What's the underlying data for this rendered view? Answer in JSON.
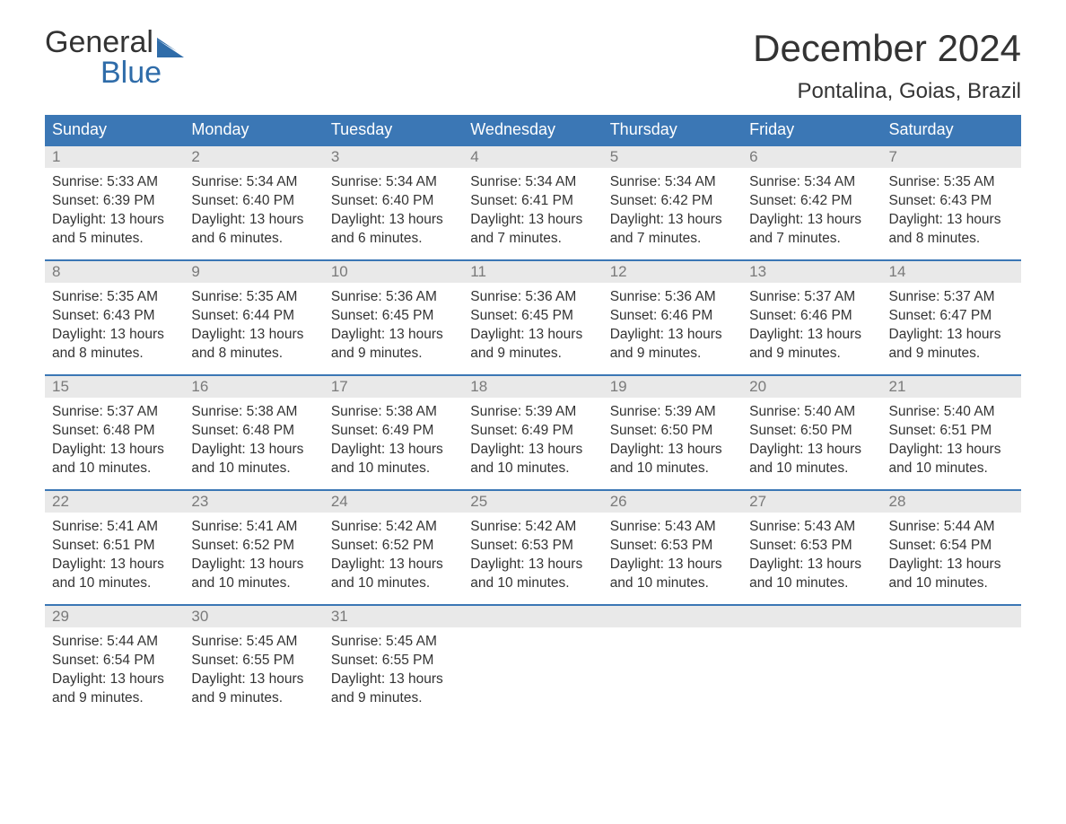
{
  "logo": {
    "word1": "General",
    "word2": "Blue",
    "accent_color": "#2f6ca9"
  },
  "title": "December 2024",
  "location": "Pontalina, Goias, Brazil",
  "colors": {
    "header_bg": "#3b77b5",
    "header_text": "#ffffff",
    "daynum_bg": "#e9e9e9",
    "daynum_text": "#7a7a7a",
    "border": "#3b77b5",
    "body_text": "#333333",
    "background": "#ffffff"
  },
  "typography": {
    "title_fontsize": 42,
    "location_fontsize": 24,
    "header_fontsize": 18,
    "daynum_fontsize": 17,
    "body_fontsize": 15.5
  },
  "weekdays": [
    "Sunday",
    "Monday",
    "Tuesday",
    "Wednesday",
    "Thursday",
    "Friday",
    "Saturday"
  ],
  "weeks": [
    [
      {
        "day": "1",
        "sunrise": "Sunrise: 5:33 AM",
        "sunset": "Sunset: 6:39 PM",
        "daylight1": "Daylight: 13 hours",
        "daylight2": "and 5 minutes."
      },
      {
        "day": "2",
        "sunrise": "Sunrise: 5:34 AM",
        "sunset": "Sunset: 6:40 PM",
        "daylight1": "Daylight: 13 hours",
        "daylight2": "and 6 minutes."
      },
      {
        "day": "3",
        "sunrise": "Sunrise: 5:34 AM",
        "sunset": "Sunset: 6:40 PM",
        "daylight1": "Daylight: 13 hours",
        "daylight2": "and 6 minutes."
      },
      {
        "day": "4",
        "sunrise": "Sunrise: 5:34 AM",
        "sunset": "Sunset: 6:41 PM",
        "daylight1": "Daylight: 13 hours",
        "daylight2": "and 7 minutes."
      },
      {
        "day": "5",
        "sunrise": "Sunrise: 5:34 AM",
        "sunset": "Sunset: 6:42 PM",
        "daylight1": "Daylight: 13 hours",
        "daylight2": "and 7 minutes."
      },
      {
        "day": "6",
        "sunrise": "Sunrise: 5:34 AM",
        "sunset": "Sunset: 6:42 PM",
        "daylight1": "Daylight: 13 hours",
        "daylight2": "and 7 minutes."
      },
      {
        "day": "7",
        "sunrise": "Sunrise: 5:35 AM",
        "sunset": "Sunset: 6:43 PM",
        "daylight1": "Daylight: 13 hours",
        "daylight2": "and 8 minutes."
      }
    ],
    [
      {
        "day": "8",
        "sunrise": "Sunrise: 5:35 AM",
        "sunset": "Sunset: 6:43 PM",
        "daylight1": "Daylight: 13 hours",
        "daylight2": "and 8 minutes."
      },
      {
        "day": "9",
        "sunrise": "Sunrise: 5:35 AM",
        "sunset": "Sunset: 6:44 PM",
        "daylight1": "Daylight: 13 hours",
        "daylight2": "and 8 minutes."
      },
      {
        "day": "10",
        "sunrise": "Sunrise: 5:36 AM",
        "sunset": "Sunset: 6:45 PM",
        "daylight1": "Daylight: 13 hours",
        "daylight2": "and 9 minutes."
      },
      {
        "day": "11",
        "sunrise": "Sunrise: 5:36 AM",
        "sunset": "Sunset: 6:45 PM",
        "daylight1": "Daylight: 13 hours",
        "daylight2": "and 9 minutes."
      },
      {
        "day": "12",
        "sunrise": "Sunrise: 5:36 AM",
        "sunset": "Sunset: 6:46 PM",
        "daylight1": "Daylight: 13 hours",
        "daylight2": "and 9 minutes."
      },
      {
        "day": "13",
        "sunrise": "Sunrise: 5:37 AM",
        "sunset": "Sunset: 6:46 PM",
        "daylight1": "Daylight: 13 hours",
        "daylight2": "and 9 minutes."
      },
      {
        "day": "14",
        "sunrise": "Sunrise: 5:37 AM",
        "sunset": "Sunset: 6:47 PM",
        "daylight1": "Daylight: 13 hours",
        "daylight2": "and 9 minutes."
      }
    ],
    [
      {
        "day": "15",
        "sunrise": "Sunrise: 5:37 AM",
        "sunset": "Sunset: 6:48 PM",
        "daylight1": "Daylight: 13 hours",
        "daylight2": "and 10 minutes."
      },
      {
        "day": "16",
        "sunrise": "Sunrise: 5:38 AM",
        "sunset": "Sunset: 6:48 PM",
        "daylight1": "Daylight: 13 hours",
        "daylight2": "and 10 minutes."
      },
      {
        "day": "17",
        "sunrise": "Sunrise: 5:38 AM",
        "sunset": "Sunset: 6:49 PM",
        "daylight1": "Daylight: 13 hours",
        "daylight2": "and 10 minutes."
      },
      {
        "day": "18",
        "sunrise": "Sunrise: 5:39 AM",
        "sunset": "Sunset: 6:49 PM",
        "daylight1": "Daylight: 13 hours",
        "daylight2": "and 10 minutes."
      },
      {
        "day": "19",
        "sunrise": "Sunrise: 5:39 AM",
        "sunset": "Sunset: 6:50 PM",
        "daylight1": "Daylight: 13 hours",
        "daylight2": "and 10 minutes."
      },
      {
        "day": "20",
        "sunrise": "Sunrise: 5:40 AM",
        "sunset": "Sunset: 6:50 PM",
        "daylight1": "Daylight: 13 hours",
        "daylight2": "and 10 minutes."
      },
      {
        "day": "21",
        "sunrise": "Sunrise: 5:40 AM",
        "sunset": "Sunset: 6:51 PM",
        "daylight1": "Daylight: 13 hours",
        "daylight2": "and 10 minutes."
      }
    ],
    [
      {
        "day": "22",
        "sunrise": "Sunrise: 5:41 AM",
        "sunset": "Sunset: 6:51 PM",
        "daylight1": "Daylight: 13 hours",
        "daylight2": "and 10 minutes."
      },
      {
        "day": "23",
        "sunrise": "Sunrise: 5:41 AM",
        "sunset": "Sunset: 6:52 PM",
        "daylight1": "Daylight: 13 hours",
        "daylight2": "and 10 minutes."
      },
      {
        "day": "24",
        "sunrise": "Sunrise: 5:42 AM",
        "sunset": "Sunset: 6:52 PM",
        "daylight1": "Daylight: 13 hours",
        "daylight2": "and 10 minutes."
      },
      {
        "day": "25",
        "sunrise": "Sunrise: 5:42 AM",
        "sunset": "Sunset: 6:53 PM",
        "daylight1": "Daylight: 13 hours",
        "daylight2": "and 10 minutes."
      },
      {
        "day": "26",
        "sunrise": "Sunrise: 5:43 AM",
        "sunset": "Sunset: 6:53 PM",
        "daylight1": "Daylight: 13 hours",
        "daylight2": "and 10 minutes."
      },
      {
        "day": "27",
        "sunrise": "Sunrise: 5:43 AM",
        "sunset": "Sunset: 6:53 PM",
        "daylight1": "Daylight: 13 hours",
        "daylight2": "and 10 minutes."
      },
      {
        "day": "28",
        "sunrise": "Sunrise: 5:44 AM",
        "sunset": "Sunset: 6:54 PM",
        "daylight1": "Daylight: 13 hours",
        "daylight2": "and 10 minutes."
      }
    ],
    [
      {
        "day": "29",
        "sunrise": "Sunrise: 5:44 AM",
        "sunset": "Sunset: 6:54 PM",
        "daylight1": "Daylight: 13 hours",
        "daylight2": "and 9 minutes."
      },
      {
        "day": "30",
        "sunrise": "Sunrise: 5:45 AM",
        "sunset": "Sunset: 6:55 PM",
        "daylight1": "Daylight: 13 hours",
        "daylight2": "and 9 minutes."
      },
      {
        "day": "31",
        "sunrise": "Sunrise: 5:45 AM",
        "sunset": "Sunset: 6:55 PM",
        "daylight1": "Daylight: 13 hours",
        "daylight2": "and 9 minutes."
      },
      {
        "day": "",
        "sunrise": "",
        "sunset": "",
        "daylight1": "",
        "daylight2": ""
      },
      {
        "day": "",
        "sunrise": "",
        "sunset": "",
        "daylight1": "",
        "daylight2": ""
      },
      {
        "day": "",
        "sunrise": "",
        "sunset": "",
        "daylight1": "",
        "daylight2": ""
      },
      {
        "day": "",
        "sunrise": "",
        "sunset": "",
        "daylight1": "",
        "daylight2": ""
      }
    ]
  ]
}
